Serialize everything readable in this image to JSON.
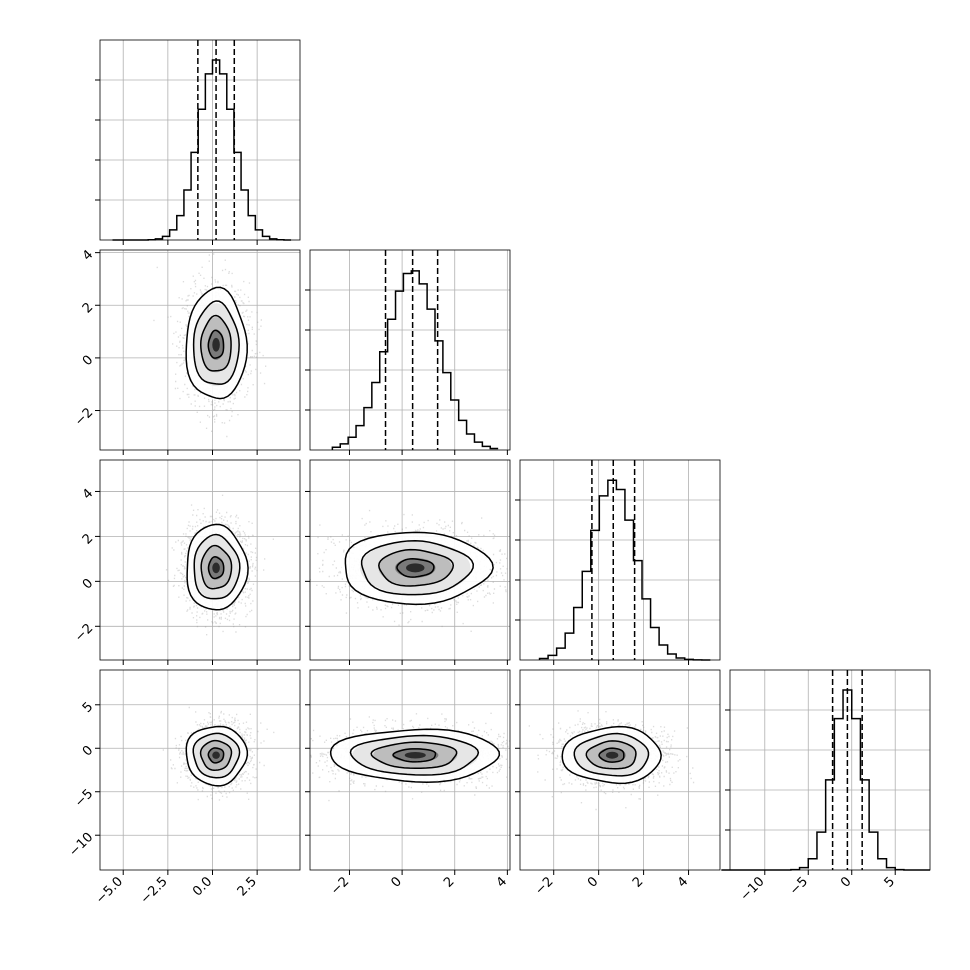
{
  "chart_data": {
    "type": "corner",
    "grid": true,
    "title": "",
    "colors": {
      "line": "#000000",
      "grid": "#b0b0b0",
      "points": "#9a9a9a",
      "background": "#ffffff"
    },
    "parameters": [
      {
        "range": [
          -6.3,
          4.9
        ],
        "ticks": [
          -5.0,
          -2.5,
          0.0,
          2.5
        ],
        "tick_labels": [
          "−5.0",
          "−2.5",
          "0.0",
          "2.5"
        ],
        "quantiles": [
          -0.82,
          0.2,
          1.22
        ],
        "mean": 0.2,
        "sigma": 1.0
      },
      {
        "range": [
          -3.5,
          4.1
        ],
        "ticks": [
          -2,
          0,
          2,
          4
        ],
        "tick_labels": [
          "−2",
          "0",
          "2",
          "4"
        ],
        "quantiles": [
          -0.63,
          0.4,
          1.35
        ],
        "mean": 0.4,
        "sigma": 1.0
      },
      {
        "range": [
          -3.5,
          5.4
        ],
        "ticks": [
          -2,
          0,
          2,
          4
        ],
        "tick_labels": [
          "−2",
          "0",
          "2",
          "4"
        ],
        "quantiles": [
          -0.3,
          0.65,
          1.6
        ],
        "mean": 0.65,
        "sigma": 1.0
      },
      {
        "range": [
          -14.0,
          9.0
        ],
        "ticks": [
          -10,
          -5,
          0,
          5
        ],
        "tick_labels": [
          "−10",
          "−5",
          "0",
          "5"
        ],
        "quantiles": [
          -2.2,
          -0.5,
          1.2
        ],
        "mean": -0.5,
        "sigma": 1.7
      }
    ],
    "histograms": [
      {
        "bin_width": 0.4,
        "peak_x": 0.2
      },
      {
        "bin_width": 0.3,
        "peak_x": 0.5
      },
      {
        "bin_width": 0.38,
        "peak_x": 0.6
      },
      {
        "bin_width": 1.0,
        "peak_x": -0.5
      }
    ],
    "pairs": [
      {
        "x_param": 0,
        "y_param": 1,
        "center": [
          0.2,
          0.5
        ],
        "spread": [
          0.85,
          1.05
        ]
      },
      {
        "x_param": 0,
        "y_param": 2,
        "center": [
          0.2,
          0.6
        ],
        "spread": [
          0.85,
          0.95
        ]
      },
      {
        "x_param": 1,
        "y_param": 2,
        "center": [
          0.5,
          0.6
        ],
        "spread": [
          1.4,
          0.8
        ]
      },
      {
        "x_param": 0,
        "y_param": 3,
        "center": [
          0.2,
          -0.8
        ],
        "spread": [
          0.85,
          1.7
        ]
      },
      {
        "x_param": 1,
        "y_param": 3,
        "center": [
          0.5,
          -0.8
        ],
        "spread": [
          1.6,
          1.5
        ]
      },
      {
        "x_param": 2,
        "y_param": 3,
        "center": [
          0.6,
          -0.8
        ],
        "spread": [
          1.1,
          1.6
        ]
      }
    ]
  }
}
